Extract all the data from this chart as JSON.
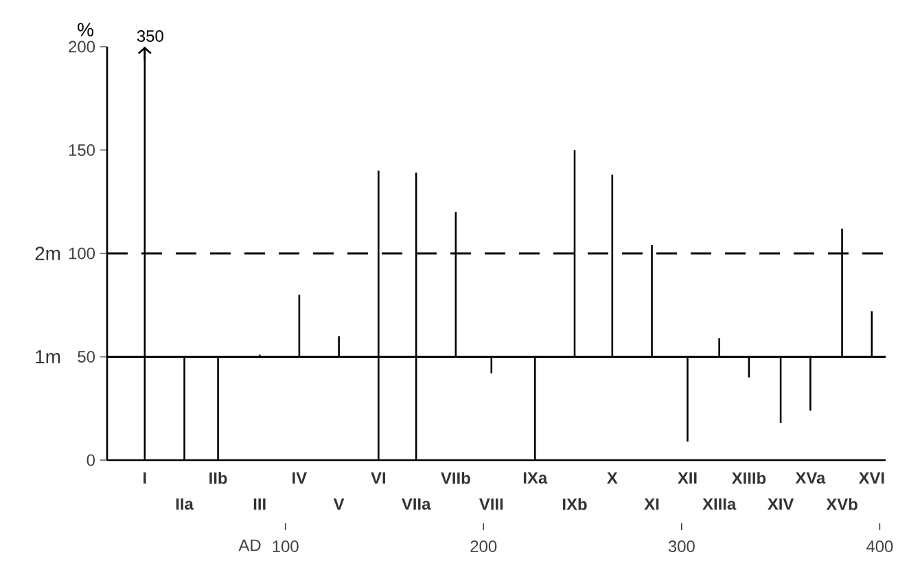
{
  "chart_data": {
    "type": "bar",
    "ylabel": "%",
    "xlabel": "AD",
    "x": [
      29,
      49,
      66,
      87,
      107,
      127,
      147,
      166,
      186,
      204,
      226,
      246,
      265,
      285,
      303,
      319,
      334,
      350,
      365,
      381,
      396
    ],
    "base": [
      0,
      50,
      50,
      50,
      50,
      50,
      0,
      0,
      50,
      50,
      50,
      50,
      50,
      50,
      50,
      50,
      50,
      50,
      50,
      50,
      50
    ],
    "values": [
      200,
      -50,
      -50,
      1,
      30,
      10,
      140,
      139,
      70,
      -8,
      -50,
      100,
      88,
      54,
      -41,
      9,
      -10,
      -32,
      -26,
      62,
      22
    ],
    "color": "#000000",
    "xlim": [
      10,
      403
    ],
    "xticks": [
      100,
      200,
      300,
      400
    ],
    "ylim": [
      0,
      200
    ],
    "yticks": [
      0,
      50,
      100,
      150,
      200
    ],
    "y2lim": [
      0,
      4
    ],
    "y2ticks": [
      {
        "value": 1,
        "label": "1m"
      },
      {
        "value": 2,
        "label": "2m"
      }
    ],
    "ref_lines": [
      {
        "axis": "y",
        "value": 50,
        "color": "#000000",
        "line_style": "solid"
      },
      {
        "axis": "y",
        "value": 100,
        "color": "#000000",
        "line_style": "dashed"
      }
    ],
    "annotations": [
      "350",
      "I",
      "IIa",
      "IIb",
      "III",
      "IV",
      "V",
      "VI",
      "VIIa",
      "VIIb",
      "VIII",
      "IXa",
      "IXb",
      "X",
      "XI",
      "XII",
      "XIIIa",
      "XIIIb",
      "XIV",
      "XVa",
      "XVb",
      "XVI"
    ]
  }
}
